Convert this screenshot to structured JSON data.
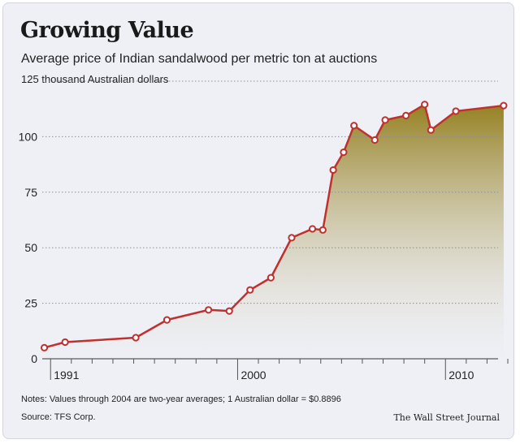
{
  "chart_data": {
    "type": "area",
    "title": "Growing Value",
    "subtitle": "Average price of Indian sandalwood per metric ton at auctions",
    "ylabel": "125 thousand Australian dollars",
    "xlabel": "",
    "ylim": [
      0,
      125
    ],
    "xlim": [
      1990.6,
      2013
    ],
    "yticks": [
      0,
      25,
      50,
      75,
      100,
      125
    ],
    "ytick_labels": [
      "0",
      "25",
      "50",
      "75",
      "100",
      ""
    ],
    "xticks": [
      1991,
      2000,
      2010
    ],
    "xtick_labels": [
      "1991",
      "2000",
      "2010"
    ],
    "grid": true,
    "series": [
      {
        "x": [
          1990.7,
          1991.7,
          1995.1,
          1996.6,
          1998.6,
          1999.6,
          2000.6,
          2001.6,
          2002.6,
          2003.6,
          2004.1,
          2004.6,
          2005.1,
          2005.6,
          2006.6,
          2007.1,
          2008.1,
          2009.0,
          2009.3,
          2010.5,
          2012.8
        ],
        "values": [
          5,
          7.5,
          9.5,
          17.5,
          22,
          21.5,
          31,
          36.5,
          54.5,
          58.5,
          58,
          85,
          93,
          105,
          98.5,
          107.5,
          109.5,
          114.5,
          103,
          111.5,
          114
        ]
      }
    ],
    "colors": {
      "line": "#c0302e",
      "fill_top": "#958021",
      "fill_bottom": "#eeeef3"
    }
  },
  "notes": "Notes: Values through 2004 are two-year averages; 1 Australian dollar = $0.8896",
  "source": "Source: TFS Corp.",
  "credit": "The Wall Street Journal"
}
